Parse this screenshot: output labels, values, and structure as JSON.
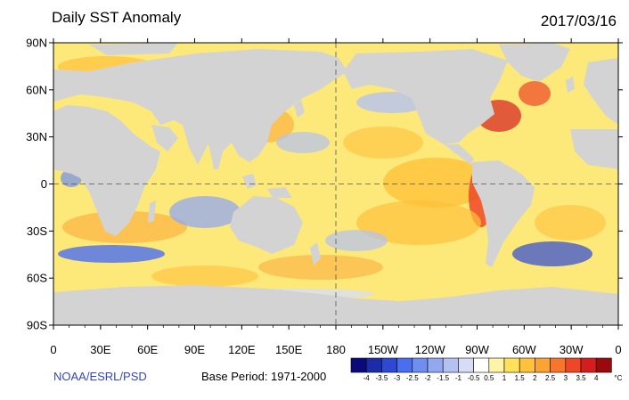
{
  "header": {
    "title": "Daily SST Anomaly",
    "date": "2017/03/16"
  },
  "footer": {
    "credit": "NOAA/ESRL/PSD",
    "base_period": "Base Period: 1971-2000"
  },
  "map": {
    "projection": "cylindrical-equidistant",
    "lon_range": [
      0,
      360
    ],
    "lat_range": [
      -90,
      90
    ],
    "land_color": "#d3d3d3",
    "ocean_base_color": "#fde87a",
    "lat_labels": [
      "90N",
      "60N",
      "30N",
      "0",
      "30S",
      "60S",
      "90S"
    ],
    "lon_labels": [
      "0",
      "30E",
      "60E",
      "90E",
      "120E",
      "150E",
      "180",
      "150W",
      "120W",
      "90W",
      "60W",
      "30W",
      "0"
    ],
    "reference_lines": [
      "equator",
      "dateline"
    ]
  },
  "colorbar": {
    "unit": "°C",
    "labels": [
      "-4",
      "-3.5",
      "-3",
      "-2.5",
      "-2",
      "-1.5",
      "-1",
      "-0.5",
      "0.5",
      "1",
      "1.5",
      "2",
      "2.5",
      "3",
      "3.5",
      "4"
    ],
    "colors": [
      "#0a0a7a",
      "#1c2ba8",
      "#2c48d4",
      "#4a6ef0",
      "#6e8ef0",
      "#92a8f0",
      "#b4c2f2",
      "#d8ddf6",
      "#ffffff",
      "#fff3a6",
      "#ffe25a",
      "#ffc23a",
      "#fca431",
      "#f8762b",
      "#ee4626",
      "#d41e1e",
      "#9a0a0a"
    ]
  }
}
